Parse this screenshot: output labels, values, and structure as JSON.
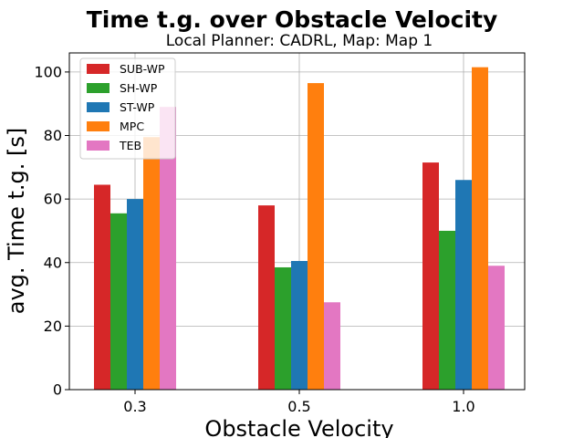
{
  "chart_data": {
    "type": "bar",
    "title": "Time t.g. over Obstacle Velocity",
    "subtitle": "Local Planner: CADRL, Map: Map 1",
    "xlabel": "Obstacle Velocity",
    "ylabel": "avg. Time t.g. [s]",
    "categories": [
      "0.3",
      "0.5",
      "1.0"
    ],
    "ylim": [
      0,
      106
    ],
    "yticks": [
      0,
      20,
      40,
      60,
      80,
      100
    ],
    "grid": true,
    "legend_position": "top-left",
    "series": [
      {
        "name": "SUB-WP",
        "color": "#d62728",
        "values": [
          64.5,
          58.0,
          71.5
        ]
      },
      {
        "name": "SH-WP",
        "color": "#2ca02c",
        "values": [
          55.5,
          38.5,
          50.0
        ]
      },
      {
        "name": "ST-WP",
        "color": "#1f77b4",
        "values": [
          60.0,
          40.5,
          66.0
        ]
      },
      {
        "name": "MPC",
        "color": "#ff7f0e",
        "values": [
          79.5,
          96.5,
          101.5
        ]
      },
      {
        "name": "TEB",
        "color": "#e377c2",
        "values": [
          89.0,
          27.5,
          39.0
        ]
      }
    ]
  }
}
